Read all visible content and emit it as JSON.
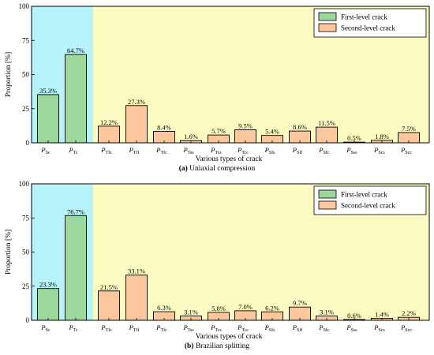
{
  "colors": {
    "first_level_fill": "#9cd89c",
    "second_level_fill": "#fcc79d",
    "first_level_region": "#b6f3fb",
    "second_level_region": "#fcfcc2",
    "bar_stroke": "#000000"
  },
  "chart_data": [
    {
      "type": "bar",
      "caption_label": "(a)",
      "caption_text": "Uniaxial compression",
      "xlabel": "Various types of crack",
      "ylabel": "Proportion [%]",
      "ylim": [
        0,
        100
      ],
      "yticks": [
        "0",
        "25",
        "50",
        "75",
        "100"
      ],
      "legend_position": "top-right",
      "legend": [
        {
          "name": "First-level crack",
          "color_key": "first_level_fill"
        },
        {
          "name": "Second-level crack",
          "color_key": "second_level_fill"
        }
      ],
      "categories": [
        {
          "main": "P",
          "sub": "Sc"
        },
        {
          "main": "P",
          "sub": "Tc"
        },
        {
          "main": "P",
          "sub": "Tfs"
        },
        {
          "main": "P",
          "sub": "Tff"
        },
        {
          "main": "P",
          "sub": "Tfc"
        },
        {
          "main": "P",
          "sub": "Tss"
        },
        {
          "main": "P",
          "sub": "Tcs"
        },
        {
          "main": "P",
          "sub": "Tcc"
        },
        {
          "main": "P",
          "sub": "Sfs"
        },
        {
          "main": "P",
          "sub": "Sff"
        },
        {
          "main": "P",
          "sub": "Sfc"
        },
        {
          "main": "P",
          "sub": "Sss"
        },
        {
          "main": "P",
          "sub": "Scs"
        },
        {
          "main": "P",
          "sub": "Scc"
        }
      ],
      "values": [
        35.3,
        64.7,
        12.2,
        27.3,
        8.4,
        1.6,
        5.7,
        9.5,
        5.4,
        8.6,
        11.5,
        0.5,
        1.8,
        7.5
      ],
      "value_labels": [
        "35.3%",
        "64.7%",
        "12.2%",
        "27.3%",
        "8.4%",
        "1.6%",
        "5.7%",
        "9.5%",
        "5.4%",
        "8.6%",
        "11.5%",
        "0.5%",
        "1.8%",
        "7.5%"
      ],
      "level": [
        1,
        1,
        2,
        2,
        2,
        2,
        2,
        2,
        2,
        2,
        2,
        2,
        2,
        2
      ]
    },
    {
      "type": "bar",
      "caption_label": "(b)",
      "caption_text": "Brazilian splitting",
      "xlabel": "Various types of crack",
      "ylabel": "Proportion [%]",
      "ylim": [
        0,
        100
      ],
      "yticks": [
        "0",
        "25",
        "50",
        "75",
        "100"
      ],
      "legend_position": "top-right",
      "legend": [
        {
          "name": "First-level crack",
          "color_key": "first_level_fill"
        },
        {
          "name": "Second-level crack",
          "color_key": "second_level_fill"
        }
      ],
      "categories": [
        {
          "main": "P",
          "sub": "Sc"
        },
        {
          "main": "P",
          "sub": "Tc"
        },
        {
          "main": "P",
          "sub": "Tfs"
        },
        {
          "main": "P",
          "sub": "Tff"
        },
        {
          "main": "P",
          "sub": "Tfc"
        },
        {
          "main": "P",
          "sub": "Tss"
        },
        {
          "main": "P",
          "sub": "Tcs"
        },
        {
          "main": "P",
          "sub": "Tcc"
        },
        {
          "main": "P",
          "sub": "Sfs"
        },
        {
          "main": "P",
          "sub": "Sff"
        },
        {
          "main": "P",
          "sub": "Sfc"
        },
        {
          "main": "P",
          "sub": "Sss"
        },
        {
          "main": "P",
          "sub": "Scs"
        },
        {
          "main": "P",
          "sub": "Scc"
        }
      ],
      "values": [
        23.3,
        76.7,
        21.5,
        33.1,
        6.3,
        3.1,
        5.8,
        7.0,
        6.2,
        9.7,
        3.1,
        0.6,
        1.4,
        2.2
      ],
      "value_labels": [
        "23.3%",
        "76.7%",
        "21.5%",
        "33.1%",
        "6.3%",
        "3.1%",
        "5.8%",
        "7.0%",
        "6.2%",
        "9.7%",
        "3.1%",
        "0.6%",
        "1.4%",
        "2.2%"
      ],
      "level": [
        1,
        1,
        2,
        2,
        2,
        2,
        2,
        2,
        2,
        2,
        2,
        2,
        2,
        2
      ]
    }
  ]
}
